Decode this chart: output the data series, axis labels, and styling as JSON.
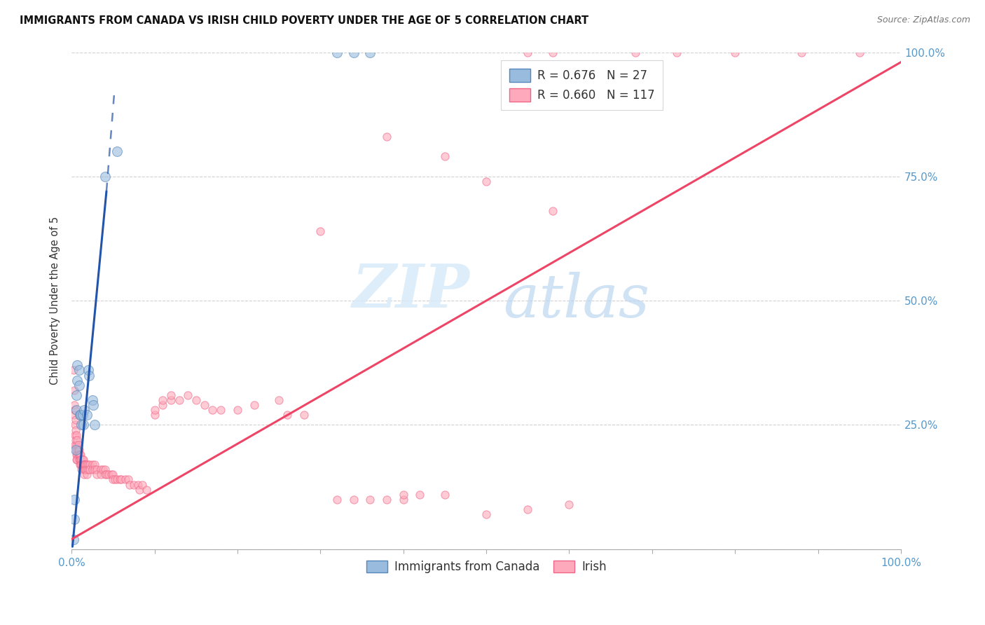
{
  "title": "IMMIGRANTS FROM CANADA VS IRISH CHILD POVERTY UNDER THE AGE OF 5 CORRELATION CHART",
  "source": "Source: ZipAtlas.com",
  "ylabel": "Child Poverty Under the Age of 5",
  "watermark_zip": "ZIP",
  "watermark_atlas": "atlas",
  "legend_label_canada": "Immigrants from Canada",
  "legend_label_irish": "Irish",
  "R_canada": 0.676,
  "N_canada": 27,
  "R_irish": 0.66,
  "N_irish": 117,
  "blue_color": "#99BBDD",
  "blue_edge_color": "#5588BB",
  "pink_color": "#FFAABC",
  "pink_edge_color": "#EE6688",
  "blue_line_color": "#2255AA",
  "pink_line_color": "#EE4466",
  "blue_scatter": [
    [
      0.002,
      0.02
    ],
    [
      0.003,
      0.06
    ],
    [
      0.003,
      0.1
    ],
    [
      0.005,
      0.2
    ],
    [
      0.006,
      0.28
    ],
    [
      0.006,
      0.31
    ],
    [
      0.007,
      0.34
    ],
    [
      0.007,
      0.37
    ],
    [
      0.009,
      0.33
    ],
    [
      0.009,
      0.36
    ],
    [
      0.01,
      0.27
    ],
    [
      0.011,
      0.27
    ],
    [
      0.012,
      0.25
    ],
    [
      0.013,
      0.27
    ],
    [
      0.014,
      0.25
    ],
    [
      0.015,
      0.28
    ],
    [
      0.018,
      0.27
    ],
    [
      0.02,
      0.36
    ],
    [
      0.021,
      0.35
    ],
    [
      0.025,
      0.3
    ],
    [
      0.026,
      0.29
    ],
    [
      0.028,
      0.25
    ],
    [
      0.04,
      0.75
    ],
    [
      0.32,
      1.0
    ],
    [
      0.34,
      1.0
    ],
    [
      0.36,
      1.0
    ],
    [
      0.055,
      0.8
    ]
  ],
  "pink_scatter": [
    [
      0.002,
      0.36
    ],
    [
      0.003,
      0.32
    ],
    [
      0.003,
      0.29
    ],
    [
      0.003,
      0.27
    ],
    [
      0.004,
      0.28
    ],
    [
      0.004,
      0.25
    ],
    [
      0.004,
      0.23
    ],
    [
      0.004,
      0.21
    ],
    [
      0.005,
      0.26
    ],
    [
      0.005,
      0.24
    ],
    [
      0.005,
      0.22
    ],
    [
      0.005,
      0.2
    ],
    [
      0.006,
      0.23
    ],
    [
      0.006,
      0.21
    ],
    [
      0.006,
      0.19
    ],
    [
      0.006,
      0.18
    ],
    [
      0.007,
      0.22
    ],
    [
      0.007,
      0.2
    ],
    [
      0.007,
      0.19
    ],
    [
      0.007,
      0.18
    ],
    [
      0.008,
      0.21
    ],
    [
      0.008,
      0.2
    ],
    [
      0.008,
      0.19
    ],
    [
      0.009,
      0.2
    ],
    [
      0.009,
      0.19
    ],
    [
      0.009,
      0.18
    ],
    [
      0.01,
      0.19
    ],
    [
      0.01,
      0.18
    ],
    [
      0.01,
      0.17
    ],
    [
      0.011,
      0.19
    ],
    [
      0.011,
      0.18
    ],
    [
      0.011,
      0.17
    ],
    [
      0.012,
      0.18
    ],
    [
      0.012,
      0.17
    ],
    [
      0.012,
      0.16
    ],
    [
      0.013,
      0.18
    ],
    [
      0.013,
      0.17
    ],
    [
      0.014,
      0.18
    ],
    [
      0.014,
      0.17
    ],
    [
      0.015,
      0.17
    ],
    [
      0.015,
      0.16
    ],
    [
      0.015,
      0.15
    ],
    [
      0.016,
      0.17
    ],
    [
      0.016,
      0.16
    ],
    [
      0.017,
      0.17
    ],
    [
      0.017,
      0.16
    ],
    [
      0.018,
      0.17
    ],
    [
      0.018,
      0.16
    ],
    [
      0.018,
      0.15
    ],
    [
      0.02,
      0.17
    ],
    [
      0.02,
      0.16
    ],
    [
      0.022,
      0.17
    ],
    [
      0.022,
      0.16
    ],
    [
      0.025,
      0.17
    ],
    [
      0.025,
      0.16
    ],
    [
      0.028,
      0.17
    ],
    [
      0.028,
      0.16
    ],
    [
      0.03,
      0.16
    ],
    [
      0.03,
      0.15
    ],
    [
      0.035,
      0.16
    ],
    [
      0.035,
      0.15
    ],
    [
      0.038,
      0.16
    ],
    [
      0.04,
      0.16
    ],
    [
      0.04,
      0.15
    ],
    [
      0.042,
      0.15
    ],
    [
      0.045,
      0.15
    ],
    [
      0.048,
      0.15
    ],
    [
      0.05,
      0.15
    ],
    [
      0.05,
      0.14
    ],
    [
      0.052,
      0.14
    ],
    [
      0.055,
      0.14
    ],
    [
      0.058,
      0.14
    ],
    [
      0.06,
      0.14
    ],
    [
      0.065,
      0.14
    ],
    [
      0.068,
      0.14
    ],
    [
      0.07,
      0.13
    ],
    [
      0.075,
      0.13
    ],
    [
      0.08,
      0.13
    ],
    [
      0.082,
      0.12
    ],
    [
      0.085,
      0.13
    ],
    [
      0.09,
      0.12
    ],
    [
      0.1,
      0.27
    ],
    [
      0.1,
      0.28
    ],
    [
      0.11,
      0.29
    ],
    [
      0.11,
      0.3
    ],
    [
      0.12,
      0.3
    ],
    [
      0.12,
      0.31
    ],
    [
      0.13,
      0.3
    ],
    [
      0.14,
      0.31
    ],
    [
      0.15,
      0.3
    ],
    [
      0.16,
      0.29
    ],
    [
      0.17,
      0.28
    ],
    [
      0.18,
      0.28
    ],
    [
      0.2,
      0.28
    ],
    [
      0.22,
      0.29
    ],
    [
      0.25,
      0.3
    ],
    [
      0.26,
      0.27
    ],
    [
      0.28,
      0.27
    ],
    [
      0.3,
      0.64
    ],
    [
      0.32,
      0.1
    ],
    [
      0.34,
      0.1
    ],
    [
      0.36,
      0.1
    ],
    [
      0.38,
      0.1
    ],
    [
      0.4,
      0.1
    ],
    [
      0.4,
      0.11
    ],
    [
      0.42,
      0.11
    ],
    [
      0.45,
      0.11
    ],
    [
      0.5,
      0.07
    ],
    [
      0.55,
      0.08
    ],
    [
      0.6,
      0.09
    ],
    [
      0.55,
      1.0
    ],
    [
      0.58,
      1.0
    ],
    [
      0.68,
      1.0
    ],
    [
      0.73,
      1.0
    ],
    [
      0.8,
      1.0
    ],
    [
      0.88,
      1.0
    ],
    [
      0.95,
      1.0
    ],
    [
      0.38,
      0.83
    ],
    [
      0.45,
      0.79
    ],
    [
      0.5,
      0.74
    ],
    [
      0.58,
      0.68
    ]
  ],
  "blue_line_solid": {
    "x0": 0.001,
    "y0": 0.005,
    "x1": 0.042,
    "y1": 0.72
  },
  "blue_line_dash": {
    "x0": 0.042,
    "y0": 0.72,
    "x1": 0.052,
    "y1": 0.93
  },
  "pink_line": {
    "x0": 0.0,
    "y0": 0.02,
    "x1": 1.0,
    "y1": 0.98
  },
  "xlim": [
    0.0,
    1.0
  ],
  "ylim": [
    0.0,
    1.0
  ],
  "xtick_positions": [
    0.0,
    0.1,
    0.2,
    0.3,
    0.4,
    0.5,
    0.6,
    0.7,
    0.8,
    0.9,
    1.0
  ],
  "ytick_positions": [
    0.0,
    0.25,
    0.5,
    0.75,
    1.0
  ],
  "ytick_labels_right": [
    "",
    "25.0%",
    "50.0%",
    "75.0%",
    "100.0%"
  ],
  "grid_color": "#CCCCCC",
  "tick_color": "#5599CC",
  "bg_color": "#FFFFFF"
}
